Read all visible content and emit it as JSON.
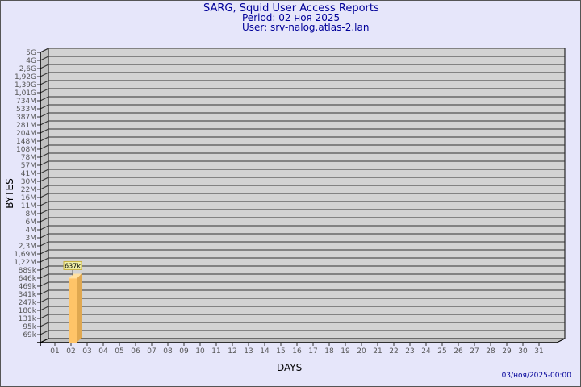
{
  "header": {
    "title": "SARG, Squid User Access Reports",
    "period": "Period: 02 ноя 2025",
    "user": "User: srv-nalog.atlas-2.lan"
  },
  "footer": {
    "timestamp": "03/ноя/2025-00:00"
  },
  "colors": {
    "background": "#e6e6fa",
    "plot": "#d3d3d3",
    "bar": "#ffc468",
    "title": "#000099"
  },
  "chart_data": {
    "type": "bar",
    "xlabel": "DAYS",
    "ylabel": "BYTES",
    "yscale": "log",
    "grid": true,
    "y_ticks": [
      "5G",
      "4G",
      "2,6G",
      "1,92G",
      "1,39G",
      "1,01G",
      "734M",
      "533M",
      "387M",
      "281M",
      "204M",
      "148M",
      "108M",
      "78M",
      "57M",
      "41M",
      "30M",
      "22M",
      "16M",
      "11M",
      "8M",
      "6M",
      "4M",
      "3M",
      "2,3M",
      "1,69M",
      "1,22M",
      "889k",
      "646k",
      "469k",
      "341k",
      "247k",
      "180k",
      "131k",
      "95k",
      "69k"
    ],
    "categories": [
      "01",
      "02",
      "03",
      "04",
      "05",
      "06",
      "07",
      "08",
      "09",
      "10",
      "11",
      "12",
      "13",
      "14",
      "15",
      "16",
      "17",
      "18",
      "19",
      "20",
      "21",
      "22",
      "23",
      "24",
      "25",
      "26",
      "27",
      "28",
      "29",
      "30",
      "31"
    ],
    "bars": [
      {
        "day": "02",
        "value": 637000,
        "label": "637k"
      }
    ]
  }
}
